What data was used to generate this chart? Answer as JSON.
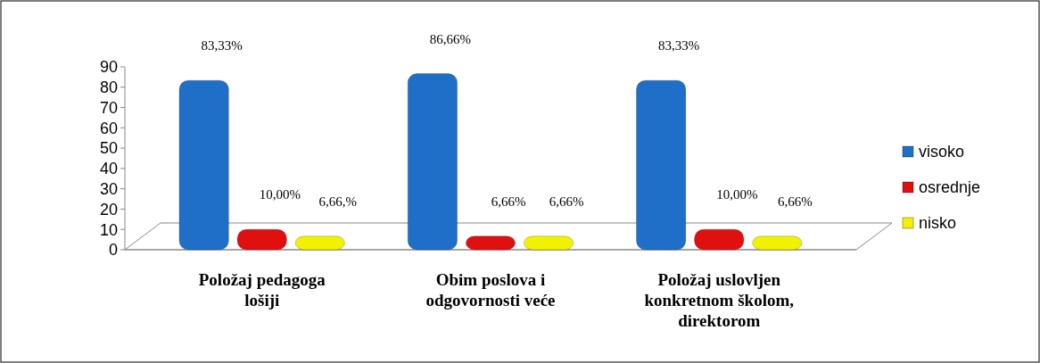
{
  "chart_data": {
    "type": "bar",
    "categories": [
      "Položaj pedagoga lošiji",
      "Obim poslova i odgovornosti veće",
      "Položaj uslovljen konkretnom školom, direktorom"
    ],
    "series": [
      {
        "name": "visoko",
        "color": "#1f6fc8",
        "values": [
          83.33,
          86.66,
          83.33
        ],
        "value_labels": [
          "83,33%",
          "86,66%",
          "83,33%"
        ]
      },
      {
        "name": "osrednje",
        "color": "#e01010",
        "values": [
          10,
          6.66,
          10
        ],
        "value_labels": [
          "10,00%",
          "6,66%",
          "10,00%"
        ]
      },
      {
        "name": "nisko",
        "color": "#f2f200",
        "values": [
          6.66,
          6.66,
          6.66
        ],
        "value_labels": [
          "6,66,%",
          "6,66%",
          "6,66%"
        ]
      }
    ],
    "ylim": [
      0,
      90
    ],
    "yticks": [
      0,
      10,
      20,
      30,
      40,
      50,
      60,
      70,
      80,
      90
    ],
    "grid": false,
    "legend": "right"
  }
}
